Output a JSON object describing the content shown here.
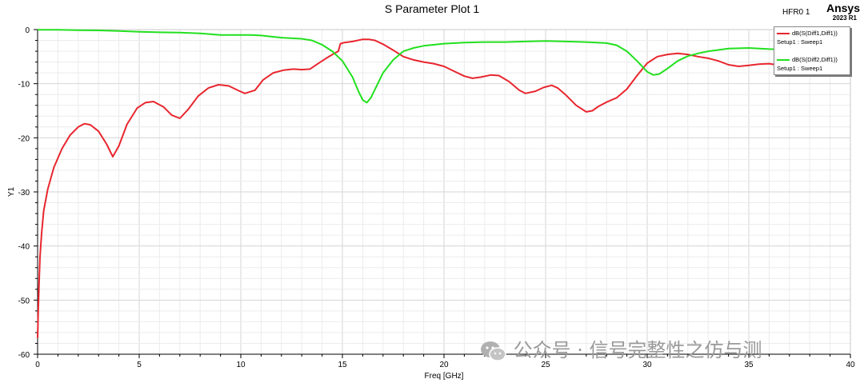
{
  "header": {
    "title": "S Parameter Plot 1",
    "hfr_label": "HFR0 1",
    "brand": "Ansys",
    "brand_version": "2023 R1"
  },
  "watermark": "公众号 · 信号完整性之仿与测",
  "colors": {
    "red": "#e8262e",
    "green": "#22e01e",
    "grid": "#e4e4e4",
    "axis": "#000000"
  },
  "chart_data": {
    "type": "line",
    "title": "S Parameter Plot 1",
    "xlabel": "Freq [GHz]",
    "ylabel": "Y1",
    "xlim": [
      0,
      40
    ],
    "ylim": [
      -60,
      0
    ],
    "xticks": [
      0,
      5,
      10,
      15,
      20,
      25,
      30,
      35,
      40
    ],
    "yticks": [
      0,
      -10,
      -20,
      -30,
      -40,
      -50,
      -60
    ],
    "grid": true,
    "legend_position": "top-right",
    "series": [
      {
        "name": "dB(S(Diff1,Diff1))",
        "sub": "Setup1 : Sweep1",
        "color": "#e8262e",
        "x": [
          0,
          0.03,
          0.07,
          0.12,
          0.2,
          0.3,
          0.5,
          0.8,
          1.2,
          1.6,
          2.0,
          2.3,
          2.6,
          3.0,
          3.4,
          3.7,
          4.0,
          4.4,
          4.9,
          5.3,
          5.7,
          6.2,
          6.6,
          7.0,
          7.4,
          7.9,
          8.4,
          8.9,
          9.4,
          9.9,
          10.2,
          10.7,
          11.1,
          11.6,
          12.1,
          12.6,
          13.0,
          13.4,
          13.8,
          14.2,
          14.6,
          14.8,
          14.9,
          15.1,
          15.5,
          16.0,
          16.3,
          16.6,
          17.0,
          17.5,
          18.0,
          18.5,
          19.0,
          19.5,
          20.0,
          20.5,
          21.0,
          21.4,
          21.8,
          22.3,
          22.7,
          23.2,
          23.7,
          24.0,
          24.5,
          24.9,
          25.3,
          25.6,
          26.0,
          26.5,
          27.0,
          27.3,
          27.6,
          28.0,
          28.5,
          29.0,
          29.5,
          30.0,
          30.5,
          31.0,
          31.5,
          32.0,
          32.5,
          33.0,
          33.5,
          34.0,
          34.5,
          35.0,
          35.5,
          36.0,
          36.5,
          37.0,
          37.5,
          38.0,
          38.5,
          39.0,
          39.5,
          40.0
        ],
        "y": [
          -57,
          -52,
          -47,
          -42,
          -37.5,
          -33.5,
          -29.5,
          -25.5,
          -22.0,
          -19.5,
          -18.0,
          -17.4,
          -17.6,
          -18.8,
          -21.2,
          -23.5,
          -21.5,
          -17.5,
          -14.5,
          -13.5,
          -13.3,
          -14.3,
          -15.8,
          -16.4,
          -14.8,
          -12.3,
          -10.8,
          -10.2,
          -10.4,
          -11.3,
          -11.8,
          -11.2,
          -9.3,
          -8.0,
          -7.5,
          -7.3,
          -7.4,
          -7.3,
          -6.3,
          -5.3,
          -4.4,
          -4.0,
          -2.6,
          -2.4,
          -2.2,
          -1.8,
          -1.8,
          -2.0,
          -2.7,
          -3.8,
          -5.0,
          -5.6,
          -6.0,
          -6.3,
          -6.8,
          -7.7,
          -8.6,
          -9.0,
          -8.8,
          -8.4,
          -8.5,
          -9.6,
          -11.2,
          -11.8,
          -11.4,
          -10.7,
          -10.3,
          -10.8,
          -12.1,
          -14.0,
          -15.2,
          -15.0,
          -14.2,
          -13.4,
          -12.6,
          -11.0,
          -8.5,
          -6.2,
          -5.0,
          -4.6,
          -4.4,
          -4.6,
          -5.0,
          -5.3,
          -5.8,
          -6.5,
          -6.8,
          -6.6,
          -6.4,
          -6.3,
          -6.6,
          -7.0,
          -7.4,
          -7.8,
          -8.0,
          -7.9,
          -7.7,
          -7.6
        ]
      },
      {
        "name": "dB(S(Diff2,Diff1))",
        "sub": "Setup1 : Sweep1",
        "color": "#22e01e",
        "x": [
          0,
          1,
          2,
          3,
          4,
          5,
          6,
          7,
          8,
          8.5,
          9,
          9.5,
          10,
          10.5,
          11,
          12,
          13,
          13.5,
          14,
          14.5,
          15,
          15.5,
          15.8,
          16.0,
          16.2,
          16.4,
          16.7,
          17.0,
          17.5,
          18.0,
          18.5,
          19.0,
          20.0,
          21.0,
          22.0,
          23.0,
          24.0,
          25.0,
          26.0,
          27.0,
          28.0,
          28.5,
          29.0,
          29.5,
          30.0,
          30.3,
          30.6,
          31.0,
          31.5,
          32.0,
          32.5,
          33.0,
          34.0,
          35.0,
          36.0,
          37.0,
          38.0,
          39.0,
          40.0
        ],
        "y": [
          -0.05,
          -0.05,
          -0.1,
          -0.15,
          -0.25,
          -0.4,
          -0.5,
          -0.55,
          -0.7,
          -0.85,
          -1.0,
          -1.0,
          -1.0,
          -1.0,
          -1.1,
          -1.5,
          -1.7,
          -2.0,
          -2.8,
          -4.0,
          -5.8,
          -8.8,
          -11.5,
          -13.0,
          -13.5,
          -12.6,
          -10.3,
          -8.0,
          -5.6,
          -4.0,
          -3.4,
          -3.0,
          -2.6,
          -2.4,
          -2.3,
          -2.3,
          -2.2,
          -2.1,
          -2.2,
          -2.3,
          -2.5,
          -2.9,
          -4.0,
          -5.8,
          -7.8,
          -8.4,
          -8.2,
          -7.2,
          -5.8,
          -4.9,
          -4.4,
          -4.0,
          -3.5,
          -3.4,
          -3.6,
          -3.7,
          -3.8,
          -3.8,
          -3.9
        ]
      }
    ]
  }
}
